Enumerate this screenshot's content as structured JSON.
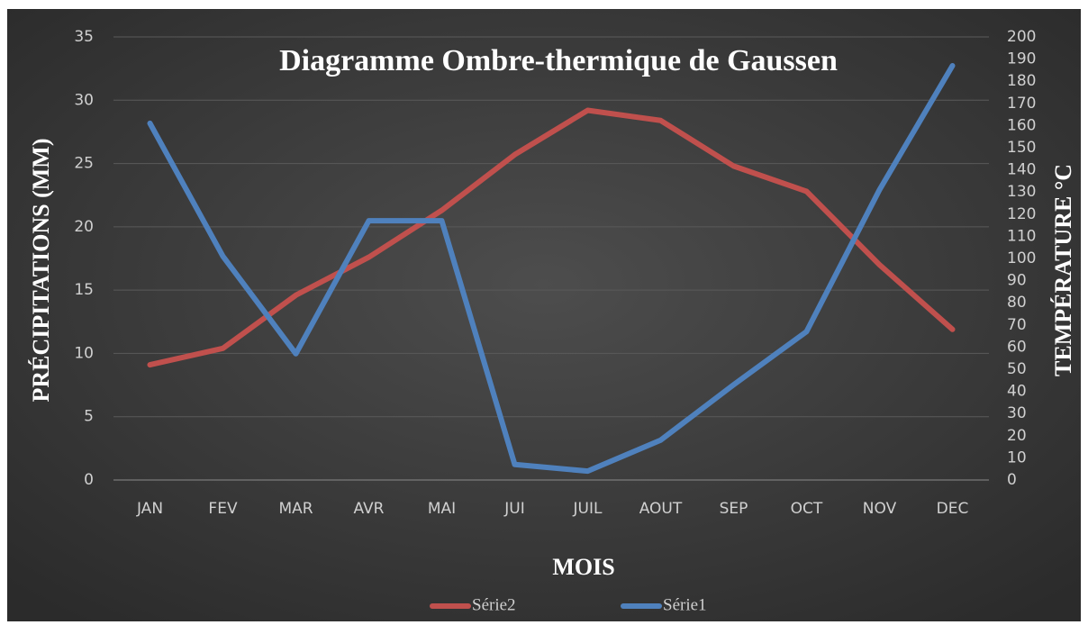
{
  "chart_data": {
    "type": "line",
    "title": "Diagramme Ombre-thermique de Gaussen",
    "x_label": "MOIS",
    "y_label": "PRÉCIPITATIONS (MM)",
    "y2_label": "TEMPÉRATURE °C",
    "categories": [
      "JAN",
      "FEV",
      "MAR",
      "AVR",
      "MAI",
      "JUI",
      "JUIL",
      "AOUT",
      "SEP",
      "OCT",
      "NOV",
      "DEC"
    ],
    "series": [
      {
        "name": "Série2",
        "color": "#c0504d",
        "axis": "y",
        "values": [
          9.1,
          10.4,
          14.6,
          17.6,
          21.3,
          25.7,
          29.2,
          28.4,
          24.8,
          22.8,
          17.0,
          11.9
        ]
      },
      {
        "name": "Série1",
        "color": "#4f81bd",
        "axis": "y2",
        "values": [
          161,
          101,
          57,
          117,
          117,
          7,
          4,
          18,
          43,
          67,
          131,
          187
        ]
      }
    ],
    "ylim": [
      0,
      35
    ],
    "yticks": [
      0,
      5,
      10,
      15,
      20,
      25,
      30,
      35
    ],
    "y2lim": [
      0,
      200
    ],
    "y2ticks": [
      0,
      10,
      20,
      30,
      40,
      50,
      60,
      70,
      80,
      90,
      100,
      110,
      120,
      130,
      140,
      150,
      160,
      170,
      180,
      190,
      200
    ],
    "grid": true,
    "legend": "bottom"
  }
}
